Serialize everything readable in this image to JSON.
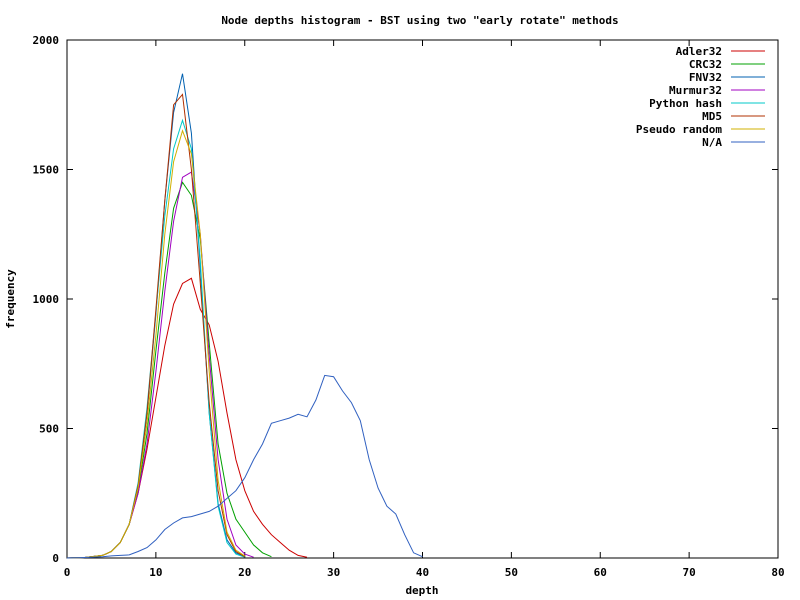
{
  "chart_data": {
    "type": "line",
    "title": "Node depths histogram - BST using two \"early rotate\" methods",
    "xlabel": "depth",
    "ylabel": "frequency",
    "xlim": [
      0,
      80
    ],
    "ylim": [
      0,
      2000
    ],
    "x_ticks": [
      "0",
      "10",
      "20",
      "30",
      "40",
      "50",
      "60",
      "70",
      "80"
    ],
    "y_ticks": [
      "0",
      "500",
      "1000",
      "1500",
      "2000"
    ],
    "grid": false,
    "legend_position": "top-right",
    "series": [
      {
        "name": "Adler32",
        "color": "#cc0000",
        "points": [
          [
            0,
            0
          ],
          [
            2,
            2
          ],
          [
            4,
            10
          ],
          [
            5,
            25
          ],
          [
            6,
            60
          ],
          [
            7,
            130
          ],
          [
            8,
            250
          ],
          [
            9,
            420
          ],
          [
            10,
            620
          ],
          [
            11,
            820
          ],
          [
            12,
            980
          ],
          [
            13,
            1060
          ],
          [
            14,
            1080
          ],
          [
            15,
            960
          ],
          [
            16,
            900
          ],
          [
            17,
            760
          ],
          [
            18,
            560
          ],
          [
            19,
            380
          ],
          [
            20,
            260
          ],
          [
            21,
            180
          ],
          [
            22,
            130
          ],
          [
            23,
            90
          ],
          [
            24,
            60
          ],
          [
            25,
            30
          ],
          [
            26,
            10
          ],
          [
            27,
            3
          ]
        ]
      },
      {
        "name": "CRC32",
        "color": "#00a000",
        "points": [
          [
            0,
            0
          ],
          [
            2,
            2
          ],
          [
            4,
            10
          ],
          [
            5,
            25
          ],
          [
            6,
            60
          ],
          [
            7,
            130
          ],
          [
            8,
            260
          ],
          [
            9,
            480
          ],
          [
            10,
            800
          ],
          [
            11,
            1100
          ],
          [
            12,
            1350
          ],
          [
            13,
            1450
          ],
          [
            14,
            1400
          ],
          [
            15,
            1230
          ],
          [
            16,
            830
          ],
          [
            17,
            440
          ],
          [
            18,
            250
          ],
          [
            19,
            150
          ],
          [
            20,
            100
          ],
          [
            21,
            50
          ],
          [
            22,
            20
          ],
          [
            23,
            5
          ]
        ]
      },
      {
        "name": "FNV32",
        "color": "#0060b0",
        "points": [
          [
            0,
            0
          ],
          [
            2,
            2
          ],
          [
            4,
            10
          ],
          [
            5,
            25
          ],
          [
            6,
            60
          ],
          [
            7,
            130
          ],
          [
            8,
            280
          ],
          [
            9,
            560
          ],
          [
            10,
            940
          ],
          [
            11,
            1380
          ],
          [
            12,
            1720
          ],
          [
            13,
            1870
          ],
          [
            14,
            1640
          ],
          [
            15,
            1120
          ],
          [
            16,
            560
          ],
          [
            17,
            210
          ],
          [
            18,
            70
          ],
          [
            19,
            20
          ],
          [
            20,
            5
          ]
        ]
      },
      {
        "name": "Murmur32",
        "color": "#a000c0",
        "points": [
          [
            0,
            0
          ],
          [
            2,
            2
          ],
          [
            4,
            10
          ],
          [
            5,
            25
          ],
          [
            6,
            60
          ],
          [
            7,
            130
          ],
          [
            8,
            250
          ],
          [
            9,
            440
          ],
          [
            10,
            720
          ],
          [
            11,
            1030
          ],
          [
            12,
            1300
          ],
          [
            13,
            1470
          ],
          [
            14,
            1490
          ],
          [
            15,
            1250
          ],
          [
            16,
            780
          ],
          [
            17,
            380
          ],
          [
            18,
            150
          ],
          [
            19,
            50
          ],
          [
            20,
            15
          ],
          [
            21,
            3
          ]
        ]
      },
      {
        "name": "Python hash",
        "color": "#00c8c8",
        "points": [
          [
            0,
            0
          ],
          [
            2,
            2
          ],
          [
            4,
            10
          ],
          [
            5,
            25
          ],
          [
            6,
            60
          ],
          [
            7,
            130
          ],
          [
            8,
            290
          ],
          [
            9,
            580
          ],
          [
            10,
            950
          ],
          [
            11,
            1320
          ],
          [
            12,
            1580
          ],
          [
            13,
            1690
          ],
          [
            14,
            1580
          ],
          [
            15,
            1150
          ],
          [
            16,
            560
          ],
          [
            17,
            200
          ],
          [
            18,
            60
          ],
          [
            19,
            15
          ],
          [
            20,
            3
          ]
        ]
      },
      {
        "name": "MD5",
        "color": "#b03000",
        "points": [
          [
            0,
            0
          ],
          [
            2,
            2
          ],
          [
            4,
            10
          ],
          [
            5,
            25
          ],
          [
            6,
            60
          ],
          [
            7,
            130
          ],
          [
            8,
            280
          ],
          [
            9,
            560
          ],
          [
            10,
            960
          ],
          [
            11,
            1380
          ],
          [
            12,
            1750
          ],
          [
            13,
            1790
          ],
          [
            14,
            1500
          ],
          [
            15,
            1060
          ],
          [
            16,
            600
          ],
          [
            17,
            260
          ],
          [
            18,
            90
          ],
          [
            19,
            25
          ],
          [
            20,
            5
          ]
        ]
      },
      {
        "name": "Pseudo random",
        "color": "#d0b000",
        "points": [
          [
            0,
            0
          ],
          [
            2,
            2
          ],
          [
            4,
            10
          ],
          [
            5,
            25
          ],
          [
            6,
            60
          ],
          [
            7,
            130
          ],
          [
            8,
            270
          ],
          [
            9,
            520
          ],
          [
            10,
            860
          ],
          [
            11,
            1250
          ],
          [
            12,
            1530
          ],
          [
            13,
            1650
          ],
          [
            14,
            1560
          ],
          [
            15,
            1250
          ],
          [
            16,
            720
          ],
          [
            17,
            300
          ],
          [
            18,
            100
          ],
          [
            19,
            30
          ],
          [
            20,
            8
          ]
        ]
      },
      {
        "name": "N/A",
        "color": "#3060c0",
        "points": [
          [
            0,
            0
          ],
          [
            2,
            2
          ],
          [
            4,
            5
          ],
          [
            5,
            8
          ],
          [
            6,
            10
          ],
          [
            7,
            12
          ],
          [
            8,
            25
          ],
          [
            9,
            40
          ],
          [
            10,
            70
          ],
          [
            11,
            110
          ],
          [
            12,
            135
          ],
          [
            13,
            155
          ],
          [
            14,
            160
          ],
          [
            15,
            170
          ],
          [
            16,
            180
          ],
          [
            17,
            200
          ],
          [
            18,
            230
          ],
          [
            19,
            260
          ],
          [
            20,
            310
          ],
          [
            21,
            380
          ],
          [
            22,
            440
          ],
          [
            23,
            520
          ],
          [
            24,
            530
          ],
          [
            25,
            540
          ],
          [
            26,
            555
          ],
          [
            27,
            545
          ],
          [
            28,
            610
          ],
          [
            29,
            705
          ],
          [
            30,
            700
          ],
          [
            31,
            645
          ],
          [
            32,
            600
          ],
          [
            33,
            530
          ],
          [
            34,
            380
          ],
          [
            35,
            270
          ],
          [
            36,
            200
          ],
          [
            37,
            170
          ],
          [
            38,
            90
          ],
          [
            39,
            20
          ],
          [
            40,
            5
          ]
        ]
      }
    ]
  }
}
